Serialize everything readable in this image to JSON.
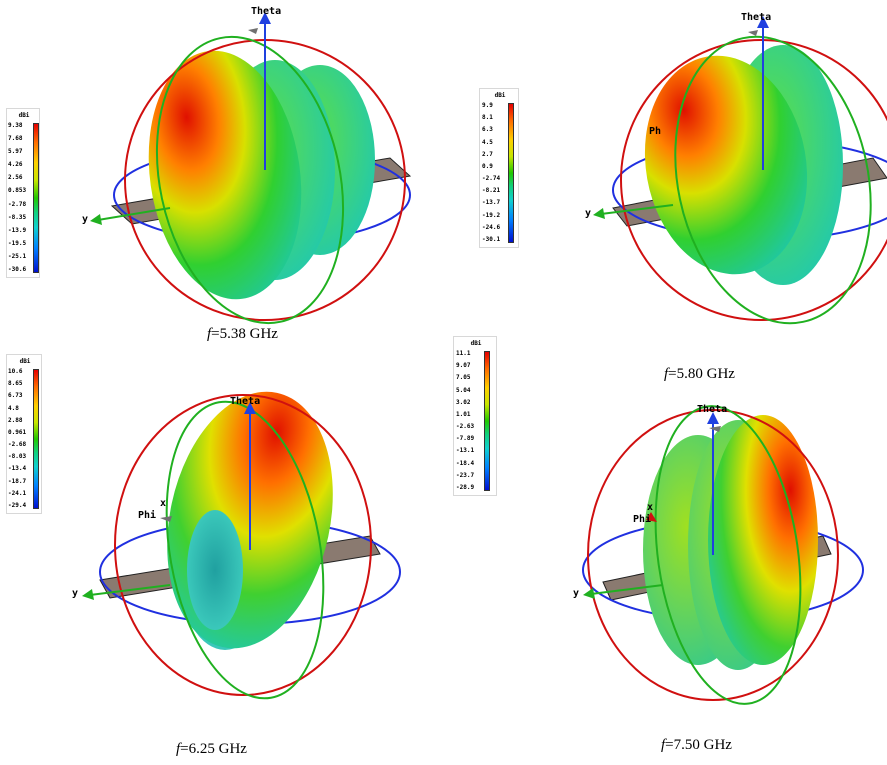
{
  "panels": [
    {
      "colorbar": {
        "unit": "dBi",
        "ticks": [
          "9.38",
          "7.68",
          "5.97",
          "4.26",
          "2.56",
          "0.853",
          "-2.78",
          "-8.35",
          "-13.9",
          "-19.5",
          "-25.1",
          "-30.6"
        ]
      },
      "axes": {
        "z": "Theta",
        "y": "y",
        "phi": "",
        "x": ""
      },
      "caption": {
        "var": "f",
        "value": "=5.38 GHz"
      }
    },
    {
      "colorbar": {
        "unit": "dBi",
        "ticks": [
          "9.9",
          "8.1",
          "6.3",
          "4.5",
          "2.7",
          "0.9",
          "-2.74",
          "-8.21",
          "-13.7",
          "-19.2",
          "-24.6",
          "-30.1"
        ]
      },
      "axes": {
        "z": "Theta",
        "y": "y",
        "phi": "Ph",
        "x": ""
      },
      "caption": {
        "var": "f",
        "value": "=5.80 GHz"
      }
    },
    {
      "colorbar": {
        "unit": "dBi",
        "ticks": [
          "10.6",
          "8.65",
          "6.73",
          "4.8",
          "2.88",
          "0.961",
          "-2.68",
          "-8.03",
          "-13.4",
          "-18.7",
          "-24.1",
          "-29.4"
        ]
      },
      "axes": {
        "z": "Theta",
        "y": "y",
        "phi": "Phi",
        "x": "x"
      },
      "caption": {
        "var": "f",
        "value": "=6.25 GHz"
      }
    },
    {
      "colorbar": {
        "unit": "dBi",
        "ticks": [
          "11.1",
          "9.07",
          "7.05",
          "5.04",
          "3.02",
          "1.01",
          "-2.63",
          "-7.89",
          "-13.1",
          "-18.4",
          "-23.7",
          "-28.9"
        ]
      },
      "axes": {
        "z": "Theta",
        "y": "y",
        "phi": "Phi",
        "x": "x"
      },
      "caption": {
        "var": "f",
        "value": "=7.50 GHz"
      }
    }
  ]
}
